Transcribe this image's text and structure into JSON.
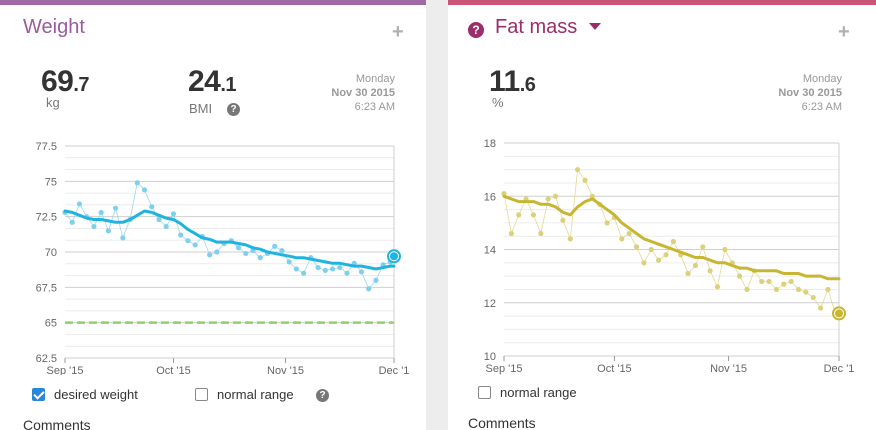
{
  "weight_card": {
    "title": "Weight",
    "add_label": "+",
    "value_int": "69",
    "value_dec": ".7",
    "value_unit": "kg",
    "bmi_int": "24",
    "bmi_dec": ".1",
    "bmi_label": "BMI",
    "help_label": "?",
    "date_day": "Monday",
    "date_date": "Nov 30 2015",
    "date_time": "6:23 AM",
    "checkbox_desired": "desired weight",
    "checkbox_normal": "normal range",
    "comments_label": "Comments",
    "desired_checked": true,
    "normal_checked": false
  },
  "fat_card": {
    "title": "Fat mass",
    "help_label": "?",
    "add_label": "+",
    "value_int": "11",
    "value_dec": ".6",
    "value_unit": "%",
    "date_day": "Monday",
    "date_date": "Nov 30 2015",
    "date_time": "6:23 AM",
    "checkbox_normal": "normal range",
    "comments_label": "Comments",
    "normal_checked": false
  },
  "colors": {
    "weight_accent": "#a06aa5",
    "fat_accent": "#cc5577",
    "weight_line": "#1fb3e0",
    "weight_points": "#7fd0ee",
    "desired_line": "#8ed16a",
    "fat_line": "#c8b531",
    "fat_points": "#ddd07a"
  },
  "chart_data": [
    {
      "type": "line",
      "title": "",
      "x_ticks": [
        "Sep '15",
        "Oct '15",
        "Nov '15",
        "Dec '1"
      ],
      "y_ticks": [
        "77.5",
        "75",
        "72.5",
        "70",
        "67.5",
        "65",
        "62.5"
      ],
      "ylim": [
        62.5,
        77.5
      ],
      "grid": true,
      "target": 65,
      "series": [
        {
          "name": "desired weight",
          "values": [
            65,
            65
          ]
        }
      ],
      "x_days": [
        0,
        2,
        4,
        6,
        8,
        10,
        12,
        14,
        16,
        18,
        20,
        22,
        24,
        26,
        28,
        30,
        32,
        34,
        36,
        38,
        40,
        42,
        44,
        46,
        48,
        50,
        52,
        54,
        56,
        58,
        60,
        62,
        64,
        66,
        68,
        70,
        72,
        74,
        76,
        78,
        80,
        82,
        84,
        86,
        88,
        90,
        91
      ],
      "points": [
        72.8,
        72.1,
        73.4,
        72.5,
        71.8,
        72.8,
        71.5,
        73.1,
        71.0,
        72.3,
        74.9,
        74.4,
        73.2,
        72.3,
        71.8,
        72.7,
        71.2,
        70.8,
        70.5,
        71.1,
        69.8,
        70.0,
        70.6,
        70.8,
        70.3,
        69.9,
        70.1,
        69.6,
        69.9,
        70.4,
        70.1,
        69.3,
        68.8,
        68.5,
        69.6,
        68.9,
        68.7,
        68.8,
        68.9,
        68.5,
        69.2,
        68.6,
        67.4,
        68.0,
        69.1,
        69.3,
        69.7
      ],
      "trend": [
        72.9,
        72.8,
        72.6,
        72.4,
        72.3,
        72.3,
        72.2,
        72.1,
        72.1,
        72.3,
        72.6,
        72.9,
        72.8,
        72.6,
        72.4,
        72.3,
        72.0,
        71.6,
        71.3,
        71.0,
        70.9,
        70.7,
        70.7,
        70.7,
        70.6,
        70.5,
        70.3,
        70.2,
        70.0,
        69.9,
        69.8,
        69.7,
        69.6,
        69.6,
        69.5,
        69.4,
        69.3,
        69.2,
        69.2,
        69.1,
        69.0,
        69.0,
        68.9,
        68.8,
        68.9,
        69.0,
        69.0
      ],
      "latest": 69.7
    },
    {
      "type": "line",
      "title": "",
      "x_ticks": [
        "Sep '15",
        "Oct '15",
        "Nov '15",
        "Dec '1"
      ],
      "y_ticks": [
        "18",
        "16",
        "14",
        "12",
        "10"
      ],
      "ylim": [
        10,
        18
      ],
      "grid": true,
      "x_days": [
        0,
        2,
        4,
        6,
        8,
        10,
        12,
        14,
        16,
        18,
        20,
        22,
        24,
        26,
        28,
        30,
        32,
        34,
        36,
        38,
        40,
        42,
        44,
        46,
        48,
        50,
        52,
        54,
        56,
        58,
        60,
        62,
        64,
        66,
        68,
        70,
        72,
        74,
        76,
        78,
        80,
        82,
        84,
        86,
        88,
        90,
        91
      ],
      "points": [
        16.1,
        14.6,
        15.3,
        15.9,
        15.3,
        14.6,
        15.9,
        16.0,
        15.1,
        14.4,
        17.0,
        16.6,
        16.0,
        15.7,
        15.0,
        15.2,
        14.4,
        14.6,
        14.1,
        13.5,
        14.0,
        13.6,
        13.8,
        14.3,
        13.8,
        13.1,
        13.4,
        14.1,
        13.2,
        12.6,
        14.0,
        13.5,
        13.0,
        12.5,
        13.2,
        12.8,
        12.8,
        12.5,
        12.7,
        12.8,
        12.5,
        12.4,
        12.2,
        11.8,
        12.5,
        11.6,
        11.6
      ],
      "trend": [
        16.0,
        15.9,
        15.8,
        15.8,
        15.8,
        15.7,
        15.7,
        15.6,
        15.4,
        15.3,
        15.6,
        15.8,
        15.9,
        15.7,
        15.5,
        15.3,
        15.0,
        14.8,
        14.6,
        14.4,
        14.3,
        14.2,
        14.1,
        14.0,
        13.9,
        13.8,
        13.7,
        13.7,
        13.6,
        13.5,
        13.5,
        13.4,
        13.3,
        13.3,
        13.2,
        13.2,
        13.2,
        13.2,
        13.1,
        13.1,
        13.1,
        13.0,
        13.0,
        13.0,
        12.9,
        12.9,
        12.9
      ],
      "latest": 11.6
    }
  ]
}
